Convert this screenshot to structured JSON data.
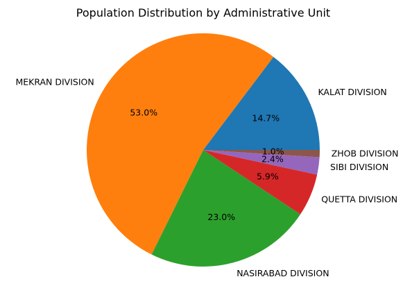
{
  "chart_data": {
    "type": "pie",
    "title": "Population Distribution by Administrative Unit",
    "start_angle_deg": 0,
    "direction": "counterclockwise",
    "slices": [
      {
        "label": "KALAT DIVISION",
        "value": 14.7,
        "pct_label": "14.7%",
        "color": "#1f77b4"
      },
      {
        "label": "MEKRAN DIVISION",
        "value": 53.0,
        "pct_label": "53.0%",
        "color": "#ff7f0e"
      },
      {
        "label": "NASIRABAD DIVISION",
        "value": 23.0,
        "pct_label": "23.0%",
        "color": "#2ca02c"
      },
      {
        "label": "QUETTA DIVISION",
        "value": 5.9,
        "pct_label": "5.9%",
        "color": "#d62728"
      },
      {
        "label": "SIBI DIVISION",
        "value": 2.4,
        "pct_label": "2.4%",
        "color": "#9467bd"
      },
      {
        "label": "ZHOB DIVISION",
        "value": 1.0,
        "pct_label": "1.0%",
        "color": "#8c564b"
      }
    ]
  }
}
